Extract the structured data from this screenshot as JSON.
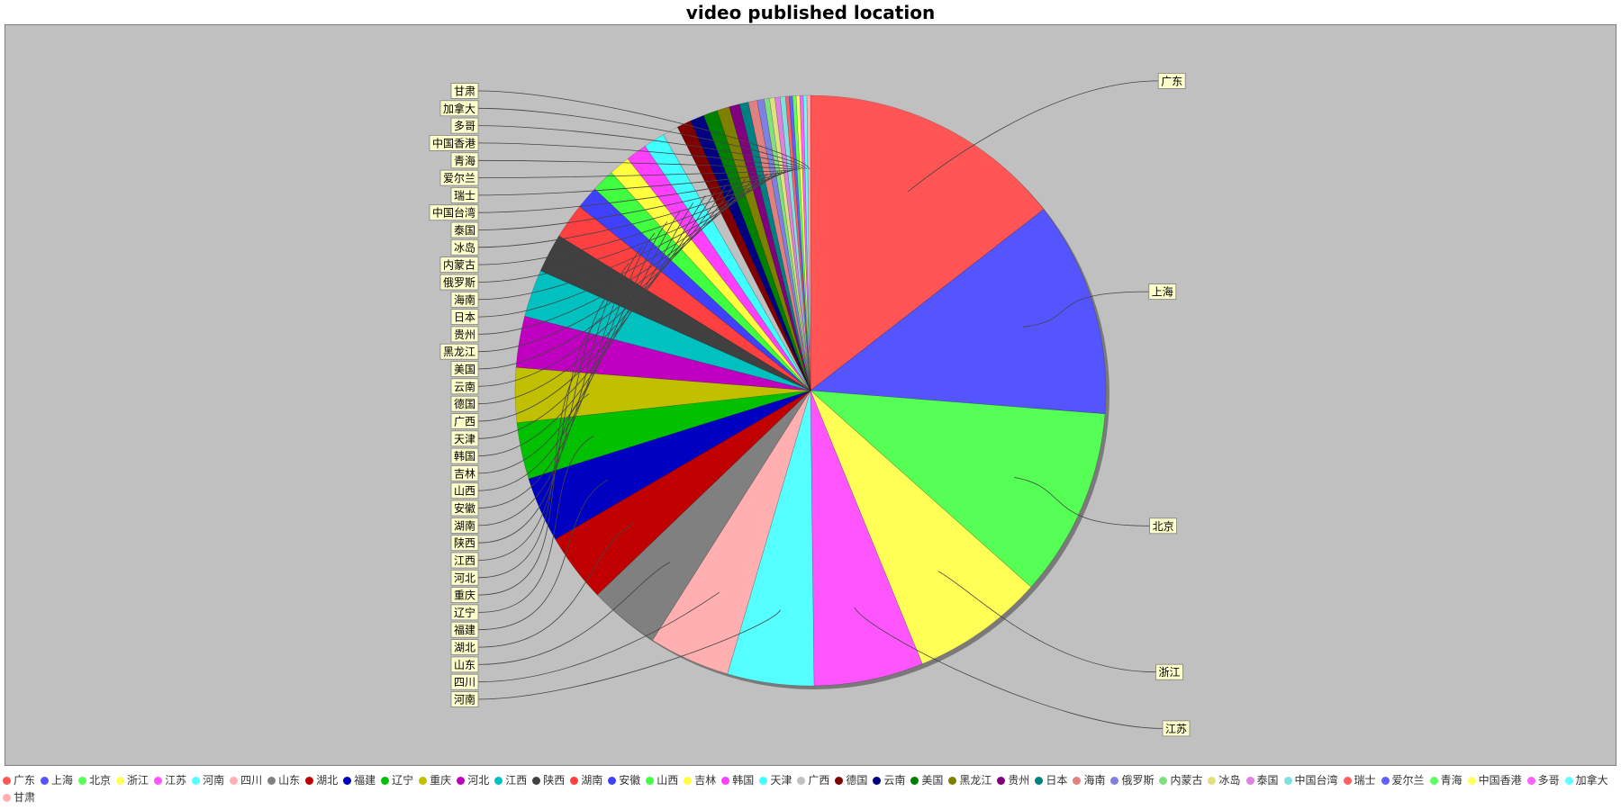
{
  "chart_data": {
    "type": "pie",
    "title": "video published location",
    "legend_position": "bottom",
    "plot_background": "#c0c0c0",
    "label_background": "#ffffcc",
    "slices": [
      {
        "label": "广东",
        "value": 15.0,
        "color": "#ff5555"
      },
      {
        "label": "上海",
        "value": 12.2,
        "color": "#5555ff"
      },
      {
        "label": "北京",
        "value": 10.7,
        "color": "#55ff55"
      },
      {
        "label": "浙江",
        "value": 7.5,
        "color": "#ffff55"
      },
      {
        "label": "江苏",
        "value": 6.2,
        "color": "#ff55ff"
      },
      {
        "label": "河南",
        "value": 4.9,
        "color": "#55ffff"
      },
      {
        "label": "四川",
        "value": 4.6,
        "color": "#ffafaf"
      },
      {
        "label": "山东",
        "value": 4.0,
        "color": "#808080"
      },
      {
        "label": "湖北",
        "value": 3.9,
        "color": "#c00000"
      },
      {
        "label": "福建",
        "value": 3.7,
        "color": "#0000c0"
      },
      {
        "label": "辽宁",
        "value": 3.2,
        "color": "#00c000"
      },
      {
        "label": "重庆",
        "value": 3.1,
        "color": "#c0c000"
      },
      {
        "label": "河北",
        "value": 2.9,
        "color": "#c000c0"
      },
      {
        "label": "江西",
        "value": 2.7,
        "color": "#00c0c0"
      },
      {
        "label": "陕西",
        "value": 2.2,
        "color": "#404040"
      },
      {
        "label": "湖南",
        "value": 2.0,
        "color": "#ff4040"
      },
      {
        "label": "安徽",
        "value": 1.3,
        "color": "#4040ff"
      },
      {
        "label": "山西",
        "value": 1.3,
        "color": "#40ff40"
      },
      {
        "label": "吉林",
        "value": 1.2,
        "color": "#ffff40"
      },
      {
        "label": "韩国",
        "value": 1.2,
        "color": "#ff40ff"
      },
      {
        "label": "天津",
        "value": 1.2,
        "color": "#40ffff"
      },
      {
        "label": "广西",
        "value": 0.9,
        "color": "#c0c0c0"
      },
      {
        "label": "德国",
        "value": 0.8,
        "color": "#800000"
      },
      {
        "label": "云南",
        "value": 0.8,
        "color": "#000080"
      },
      {
        "label": "美国",
        "value": 0.8,
        "color": "#008000"
      },
      {
        "label": "黑龙江",
        "value": 0.7,
        "color": "#808000"
      },
      {
        "label": "贵州",
        "value": 0.6,
        "color": "#800080"
      },
      {
        "label": "日本",
        "value": 0.5,
        "color": "#008080"
      },
      {
        "label": "海南",
        "value": 0.5,
        "color": "#e08080"
      },
      {
        "label": "俄罗斯",
        "value": 0.4,
        "color": "#8080e0"
      },
      {
        "label": "内蒙古",
        "value": 0.3,
        "color": "#80e080"
      },
      {
        "label": "冰岛",
        "value": 0.3,
        "color": "#e0e080"
      },
      {
        "label": "泰国",
        "value": 0.3,
        "color": "#e080e0"
      },
      {
        "label": "中国台湾",
        "value": 0.3,
        "color": "#80e0e0"
      },
      {
        "label": "瑞士",
        "value": 0.2,
        "color": "#ff6060"
      },
      {
        "label": "爱尔兰",
        "value": 0.2,
        "color": "#6060ff"
      },
      {
        "label": "青海",
        "value": 0.2,
        "color": "#60ff60"
      },
      {
        "label": "中国香港",
        "value": 0.2,
        "color": "#ffff60"
      },
      {
        "label": "多哥",
        "value": 0.2,
        "color": "#ff60ff"
      },
      {
        "label": "加拿大",
        "value": 0.2,
        "color": "#60ffff"
      },
      {
        "label": "甘肃",
        "value": 0.2,
        "color": "#ffb0b0"
      }
    ]
  }
}
